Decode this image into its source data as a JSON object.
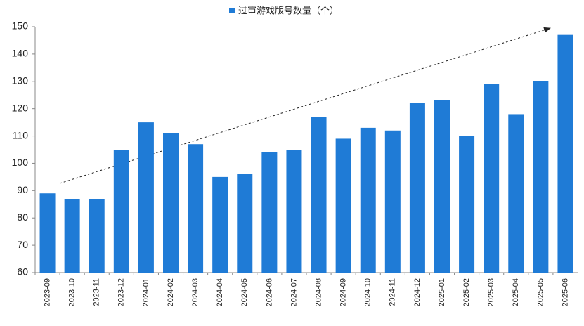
{
  "chart_data": {
    "type": "bar",
    "categories": [
      "2023-09",
      "2023-10",
      "2023-11",
      "2023-12",
      "2024-01",
      "2024-02",
      "2024-03",
      "2024-04",
      "2024-05",
      "2024-06",
      "2024-07",
      "2024-08",
      "2024-09",
      "2024-10",
      "2024-11",
      "2024-12",
      "2025-01",
      "2025-02",
      "2025-03",
      "2025-04",
      "2025-05",
      "2025-06"
    ],
    "series": [
      {
        "name": "过审游戏版号数量（个）",
        "color": "#1f7bd6",
        "values": [
          89,
          87,
          87,
          105,
          115,
          111,
          107,
          95,
          96,
          104,
          105,
          117,
          109,
          113,
          112,
          122,
          123,
          110,
          129,
          118,
          130,
          147
        ]
      }
    ],
    "ylim": [
      60,
      150
    ],
    "yticks": [
      60,
      70,
      80,
      90,
      100,
      110,
      120,
      130,
      140,
      150
    ]
  }
}
